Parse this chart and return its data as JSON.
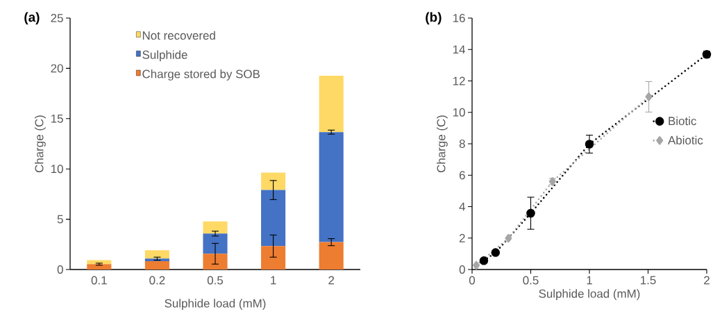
{
  "chart_data": [
    {
      "type": "bar",
      "stacked": true,
      "annotations": [
        "(a)"
      ],
      "xlabel": "Sulphide load (mM)",
      "ylabel": "Charge (C)",
      "categories": [
        "0.1",
        "0.2",
        "0.5",
        "1",
        "2"
      ],
      "series": [
        {
          "name": "Charge stored by SOB",
          "color": "#ed7d31",
          "values": [
            0.53,
            0.83,
            1.57,
            2.33,
            2.72
          ],
          "errors": [
            0.1,
            null,
            1.03,
            1.1,
            0.35
          ]
        },
        {
          "name": "Sulphide",
          "color": "#4472c4",
          "values": [
            null,
            0.25,
            2.0,
            5.57,
            10.94
          ],
          "errors": [
            null,
            0.15,
            0.24,
            0.95,
            0.2
          ]
        },
        {
          "name": "Not recovered",
          "color": "#ffd966",
          "values": [
            0.41,
            0.83,
            1.22,
            1.73,
            5.6
          ]
        }
      ],
      "ylim": [
        0,
        25
      ],
      "yticks": [
        0,
        5,
        10,
        15,
        20,
        25
      ],
      "grid": false,
      "legend": "top left"
    },
    {
      "type": "line",
      "annotations": [
        "(b)"
      ],
      "xlabel": "Sulphide load (mM)",
      "ylabel": "Charge (C)",
      "series": [
        {
          "name": "Biotic",
          "color": "#000000",
          "marker": "circle",
          "line_style": "dotted",
          "x": [
            0.1,
            0.2,
            0.5,
            1,
            2
          ],
          "values": [
            0.56,
            1.08,
            3.58,
            7.98,
            13.69
          ],
          "errors": [
            null,
            null,
            1.02,
            0.57,
            0.2
          ]
        },
        {
          "name": "Abiotic",
          "color": "#a6a6a6",
          "marker": "diamond",
          "line_style": "dotted",
          "x": [
            0.036,
            0.31,
            0.685,
            1.506
          ],
          "values": [
            0.27,
            1.99,
            5.6,
            10.99
          ],
          "errors": [
            null,
            null,
            0.2,
            0.97
          ]
        }
      ],
      "xlim": [
        0,
        2
      ],
      "xticks": [
        0,
        0.5,
        1,
        1.5,
        2
      ],
      "ylim": [
        0,
        16
      ],
      "yticks": [
        0,
        2,
        4,
        6,
        8,
        10,
        12,
        14,
        16
      ],
      "grid": false,
      "legend": "right"
    }
  ]
}
